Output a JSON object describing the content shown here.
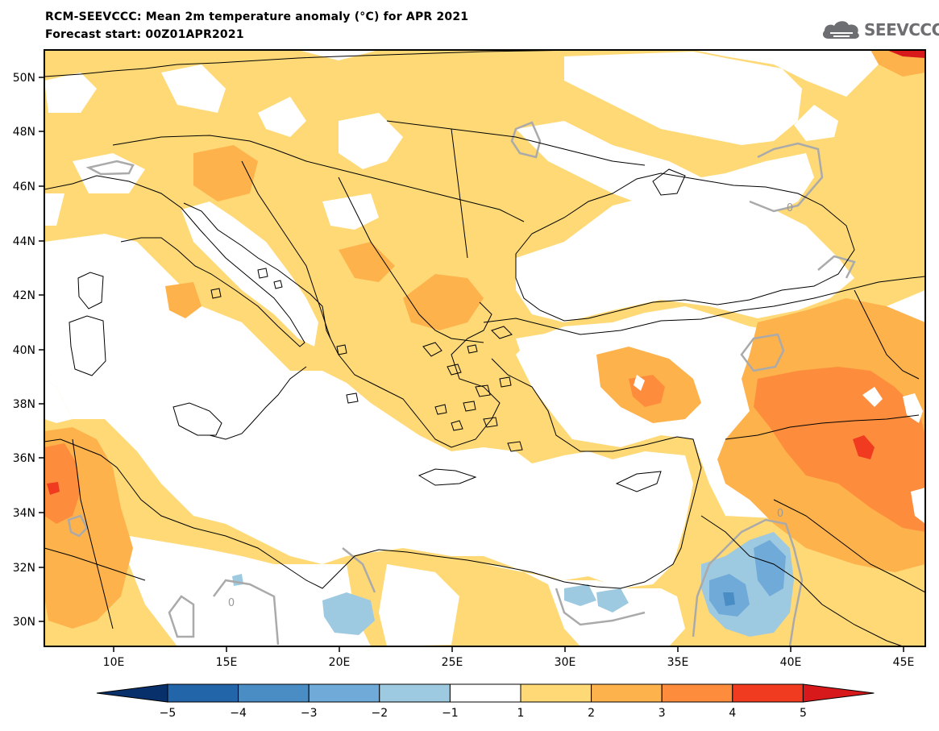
{
  "header": {
    "title": "RCM-SEEVCCC: Mean 2m temperature anomaly (°C) for APR 2021",
    "subtitle": "Forecast start: 00Z01APR2021"
  },
  "logo": {
    "text": "SEEVCCC",
    "icon": "cloud-icon"
  },
  "map": {
    "lat_ticks": [
      "50N",
      "48N",
      "46N",
      "44N",
      "42N",
      "40N",
      "38N",
      "36N",
      "34N",
      "32N",
      "30N"
    ],
    "lon_ticks": [
      "10E",
      "15E",
      "20E",
      "25E",
      "30E",
      "35E",
      "40E",
      "45E"
    ],
    "contour_labels": [
      "0",
      "0",
      "0"
    ],
    "colors": {
      "land_neutral": "#ffffff",
      "frame": "#000000",
      "zero_contour": "#aaaaaa"
    }
  },
  "colorbar": {
    "tick_labels": [
      "−5",
      "−4",
      "−3",
      "−2",
      "−1",
      "1",
      "2",
      "3",
      "4",
      "5"
    ],
    "bins": [
      {
        "range": "< -5",
        "color": "#08306b"
      },
      {
        "range": "-5 to -4",
        "color": "#2265a8"
      },
      {
        "range": "-4 to -3",
        "color": "#4a8cc4"
      },
      {
        "range": "-3 to -2",
        "color": "#70aad8"
      },
      {
        "range": "-2 to -1",
        "color": "#9ecae1"
      },
      {
        "range": "-1 to 1",
        "color": "#ffffff"
      },
      {
        "range": "1 to 2",
        "color": "#fed976"
      },
      {
        "range": "2 to 3",
        "color": "#feb24c"
      },
      {
        "range": "3 to 4",
        "color": "#fd8d3c"
      },
      {
        "range": "4 to 5",
        "color": "#f03b20"
      },
      {
        "range": "> 5",
        "color": "#d7191c"
      }
    ]
  }
}
